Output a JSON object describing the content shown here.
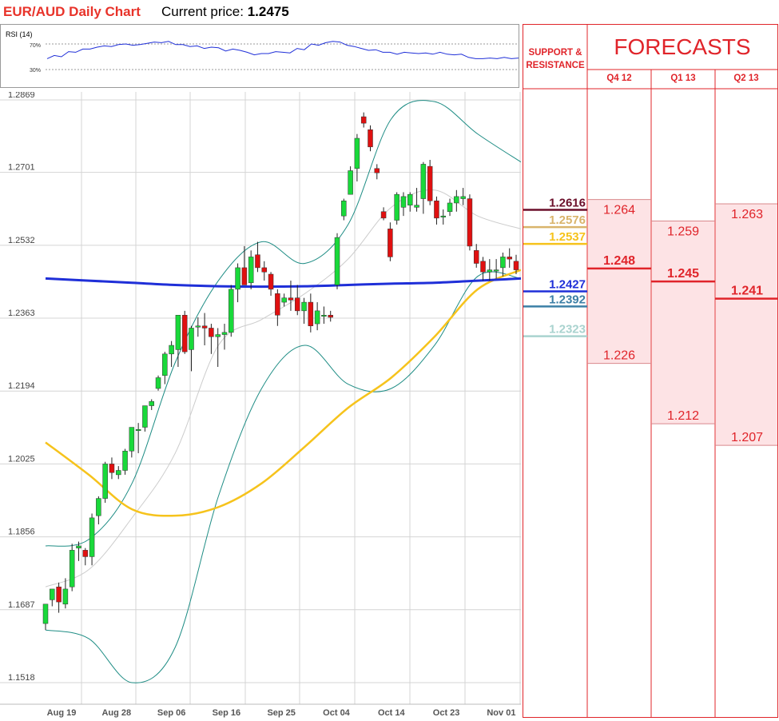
{
  "header": {
    "title": "EUR/AUD Daily Chart",
    "price_label": "Current price:",
    "price_value": "1.2475"
  },
  "rsi": {
    "label": "RSI (14)",
    "levels": [
      "70%",
      "30%"
    ],
    "values": [
      47,
      52,
      50,
      58,
      57,
      62,
      62,
      65,
      67,
      66,
      69,
      70,
      68,
      69,
      71,
      73,
      72,
      74,
      69,
      69,
      66,
      67,
      63,
      65,
      64,
      59,
      62,
      60,
      57,
      53,
      55,
      55,
      58,
      57,
      56,
      63,
      61,
      70,
      68,
      72,
      74,
      73,
      68,
      66,
      63,
      60,
      61,
      57,
      57,
      54,
      57,
      56,
      55,
      56,
      54,
      57,
      54,
      53,
      54,
      49,
      47,
      47,
      48,
      47,
      49,
      47,
      48
    ]
  },
  "chart_data": {
    "type": "candlestick",
    "title": "EUR/AUD Daily Chart",
    "y_ticks": [
      "1.2869",
      "1.2701",
      "1.2532",
      "1.2363",
      "1.2194",
      "1.2025",
      "1.1856",
      "1.1687",
      "1.1518"
    ],
    "x_ticks": [
      "Aug 19",
      "Aug 28",
      "Sep 06",
      "Sep 16",
      "Sep 25",
      "Oct 04",
      "Oct 14",
      "Oct 23",
      "Nov 01"
    ],
    "ylim": [
      1.1518,
      1.2869
    ],
    "grid": true,
    "colors": {
      "up": "#19d93a",
      "down": "#e01010",
      "ma200": "#1f2fd8",
      "ma50": "#f6c31c",
      "bollinger": "#1f8d85",
      "bollinger_mid": "#cccccc"
    },
    "candles": [
      {
        "o": 1.1655,
        "h": 1.169,
        "l": 1.164,
        "c": 1.17
      },
      {
        "o": 1.171,
        "h": 1.1735,
        "l": 1.1695,
        "c": 1.1735
      },
      {
        "o": 1.174,
        "h": 1.175,
        "l": 1.168,
        "c": 1.1705
      },
      {
        "o": 1.17,
        "h": 1.176,
        "l": 1.169,
        "c": 1.1735
      },
      {
        "o": 1.174,
        "h": 1.184,
        "l": 1.173,
        "c": 1.1825
      },
      {
        "o": 1.183,
        "h": 1.1845,
        "l": 1.18,
        "c": 1.1835
      },
      {
        "o": 1.1825,
        "h": 1.183,
        "l": 1.179,
        "c": 1.181
      },
      {
        "o": 1.181,
        "h": 1.191,
        "l": 1.179,
        "c": 1.19
      },
      {
        "o": 1.1905,
        "h": 1.195,
        "l": 1.1885,
        "c": 1.1945
      },
      {
        "o": 1.1945,
        "h": 1.203,
        "l": 1.1935,
        "c": 1.2025
      },
      {
        "o": 1.2025,
        "h": 1.204,
        "l": 1.199,
        "c": 1.2005
      },
      {
        "o": 1.2,
        "h": 1.202,
        "l": 1.199,
        "c": 1.201
      },
      {
        "o": 1.201,
        "h": 1.206,
        "l": 1.2,
        "c": 1.2055
      },
      {
        "o": 1.2055,
        "h": 1.211,
        "l": 1.204,
        "c": 1.211
      },
      {
        "o": 1.2105,
        "h": 1.212,
        "l": 1.205,
        "c": 1.2105
      },
      {
        "o": 1.211,
        "h": 1.216,
        "l": 1.21,
        "c": 1.216
      },
      {
        "o": 1.216,
        "h": 1.2175,
        "l": 1.215,
        "c": 1.217
      },
      {
        "o": 1.22,
        "h": 1.223,
        "l": 1.2195,
        "c": 1.2225
      },
      {
        "o": 1.223,
        "h": 1.2285,
        "l": 1.221,
        "c": 1.228
      },
      {
        "o": 1.228,
        "h": 1.231,
        "l": 1.225,
        "c": 1.23
      },
      {
        "o": 1.229,
        "h": 1.237,
        "l": 1.225,
        "c": 1.237
      },
      {
        "o": 1.237,
        "h": 1.238,
        "l": 1.228,
        "c": 1.2285
      },
      {
        "o": 1.229,
        "h": 1.2345,
        "l": 1.224,
        "c": 1.234
      },
      {
        "o": 1.2345,
        "h": 1.2365,
        "l": 1.232,
        "c": 1.2345
      },
      {
        "o": 1.2345,
        "h": 1.2375,
        "l": 1.23,
        "c": 1.234
      },
      {
        "o": 1.234,
        "h": 1.235,
        "l": 1.228,
        "c": 1.232
      },
      {
        "o": 1.232,
        "h": 1.234,
        "l": 1.225,
        "c": 1.2325
      },
      {
        "o": 1.2325,
        "h": 1.235,
        "l": 1.229,
        "c": 1.233
      },
      {
        "o": 1.233,
        "h": 1.244,
        "l": 1.232,
        "c": 1.243
      },
      {
        "o": 1.243,
        "h": 1.249,
        "l": 1.24,
        "c": 1.248
      },
      {
        "o": 1.248,
        "h": 1.253,
        "l": 1.244,
        "c": 1.244
      },
      {
        "o": 1.2445,
        "h": 1.252,
        "l": 1.243,
        "c": 1.2505
      },
      {
        "o": 1.251,
        "h": 1.254,
        "l": 1.247,
        "c": 1.248
      },
      {
        "o": 1.248,
        "h": 1.2495,
        "l": 1.245,
        "c": 1.247
      },
      {
        "o": 1.2465,
        "h": 1.247,
        "l": 1.2415,
        "c": 1.243
      },
      {
        "o": 1.242,
        "h": 1.243,
        "l": 1.2345,
        "c": 1.237
      },
      {
        "o": 1.24,
        "h": 1.242,
        "l": 1.239,
        "c": 1.241
      },
      {
        "o": 1.241,
        "h": 1.245,
        "l": 1.238,
        "c": 1.2405
      },
      {
        "o": 1.241,
        "h": 1.244,
        "l": 1.237,
        "c": 1.238
      },
      {
        "o": 1.238,
        "h": 1.241,
        "l": 1.235,
        "c": 1.24
      },
      {
        "o": 1.24,
        "h": 1.242,
        "l": 1.233,
        "c": 1.2345
      },
      {
        "o": 1.235,
        "h": 1.24,
        "l": 1.2335,
        "c": 1.238
      },
      {
        "o": 1.237,
        "h": 1.239,
        "l": 1.235,
        "c": 1.237
      },
      {
        "o": 1.237,
        "h": 1.238,
        "l": 1.2355,
        "c": 1.2365
      },
      {
        "o": 1.244,
        "h": 1.256,
        "l": 1.243,
        "c": 1.255
      },
      {
        "o": 1.26,
        "h": 1.264,
        "l": 1.259,
        "c": 1.2635
      },
      {
        "o": 1.265,
        "h": 1.2715,
        "l": 1.265,
        "c": 1.2705
      },
      {
        "o": 1.271,
        "h": 1.279,
        "l": 1.268,
        "c": 1.278
      },
      {
        "o": 1.283,
        "h": 1.284,
        "l": 1.2805,
        "c": 1.2815
      },
      {
        "o": 1.28,
        "h": 1.281,
        "l": 1.275,
        "c": 1.276
      },
      {
        "o": 1.271,
        "h": 1.272,
        "l": 1.2685,
        "c": 1.27
      },
      {
        "o": 1.261,
        "h": 1.262,
        "l": 1.259,
        "c": 1.2595
      },
      {
        "o": 1.257,
        "h": 1.2585,
        "l": 1.2495,
        "c": 1.2505
      },
      {
        "o": 1.259,
        "h": 1.2655,
        "l": 1.258,
        "c": 1.265
      },
      {
        "o": 1.262,
        "h": 1.2655,
        "l": 1.26,
        "c": 1.2645
      },
      {
        "o": 1.2625,
        "h": 1.2655,
        "l": 1.261,
        "c": 1.265
      },
      {
        "o": 1.262,
        "h": 1.2665,
        "l": 1.261,
        "c": 1.2625
      },
      {
        "o": 1.264,
        "h": 1.2725,
        "l": 1.2605,
        "c": 1.272
      },
      {
        "o": 1.2715,
        "h": 1.273,
        "l": 1.2625,
        "c": 1.2635
      },
      {
        "o": 1.2635,
        "h": 1.2645,
        "l": 1.258,
        "c": 1.2595
      },
      {
        "o": 1.26,
        "h": 1.2615,
        "l": 1.258,
        "c": 1.26
      },
      {
        "o": 1.261,
        "h": 1.264,
        "l": 1.26,
        "c": 1.263
      },
      {
        "o": 1.263,
        "h": 1.266,
        "l": 1.261,
        "c": 1.2645
      },
      {
        "o": 1.264,
        "h": 1.2665,
        "l": 1.2625,
        "c": 1.2645
      },
      {
        "o": 1.264,
        "h": 1.265,
        "l": 1.252,
        "c": 1.253
      },
      {
        "o": 1.252,
        "h": 1.2535,
        "l": 1.248,
        "c": 1.249
      },
      {
        "o": 1.2495,
        "h": 1.2505,
        "l": 1.245,
        "c": 1.247
      },
      {
        "o": 1.247,
        "h": 1.25,
        "l": 1.245,
        "c": 1.2475
      },
      {
        "o": 1.2475,
        "h": 1.25,
        "l": 1.2455,
        "c": 1.2475
      },
      {
        "o": 1.248,
        "h": 1.2515,
        "l": 1.246,
        "c": 1.2505
      },
      {
        "o": 1.2505,
        "h": 1.2525,
        "l": 1.248,
        "c": 1.25
      },
      {
        "o": 1.2495,
        "h": 1.251,
        "l": 1.2465,
        "c": 1.2475
      }
    ],
    "ma200": [
      1.2455,
      1.245,
      1.2445,
      1.244,
      1.2437,
      1.2436,
      1.2437,
      1.244,
      1.2443,
      1.2445,
      1.245,
      1.2455
    ],
    "ma50": [
      1.2075,
      1.2,
      1.192,
      1.1905,
      1.1925,
      1.198,
      1.2065,
      1.2155,
      1.2225,
      1.232,
      1.243,
      1.2475
    ],
    "bollinger_upper": [
      1.1835,
      1.185,
      1.198,
      1.226,
      1.245,
      1.254,
      1.249,
      1.258,
      1.2825,
      1.2865,
      1.279,
      1.2725
    ],
    "bollinger_lower": [
      1.164,
      1.162,
      1.1518,
      1.16,
      1.195,
      1.22,
      1.23,
      1.221,
      1.22,
      1.23,
      1.246,
      1.2455
    ],
    "bollinger_mid": [
      1.174,
      1.178,
      1.19,
      1.205,
      1.23,
      1.236,
      1.242,
      1.25,
      1.262,
      1.266,
      1.26,
      1.257
    ]
  },
  "support_resistance": {
    "title_line1": "SUPPORT &",
    "title_line2": "RESISTANCE",
    "levels": [
      {
        "value": "1.2616",
        "color": "#6b0f2a"
      },
      {
        "value": "1.2576",
        "color": "#d9b46b"
      },
      {
        "value": "1.2537",
        "color": "#f6c31c"
      },
      {
        "value": "1.2427",
        "color": "#1f2fd8"
      },
      {
        "value": "1.2392",
        "color": "#3c7fa6"
      },
      {
        "value": "1.2323",
        "color": "#a9d3cf"
      }
    ]
  },
  "forecasts": {
    "title": "FORECASTS",
    "columns": [
      {
        "label": "Q4 12",
        "high": "1.264",
        "mid": "1.248",
        "low": "1.226"
      },
      {
        "label": "Q1 13",
        "high": "1.259",
        "mid": "1.245",
        "low": "1.212"
      },
      {
        "label": "Q2 13",
        "high": "1.263",
        "mid": "1.241",
        "low": "1.207"
      }
    ]
  }
}
